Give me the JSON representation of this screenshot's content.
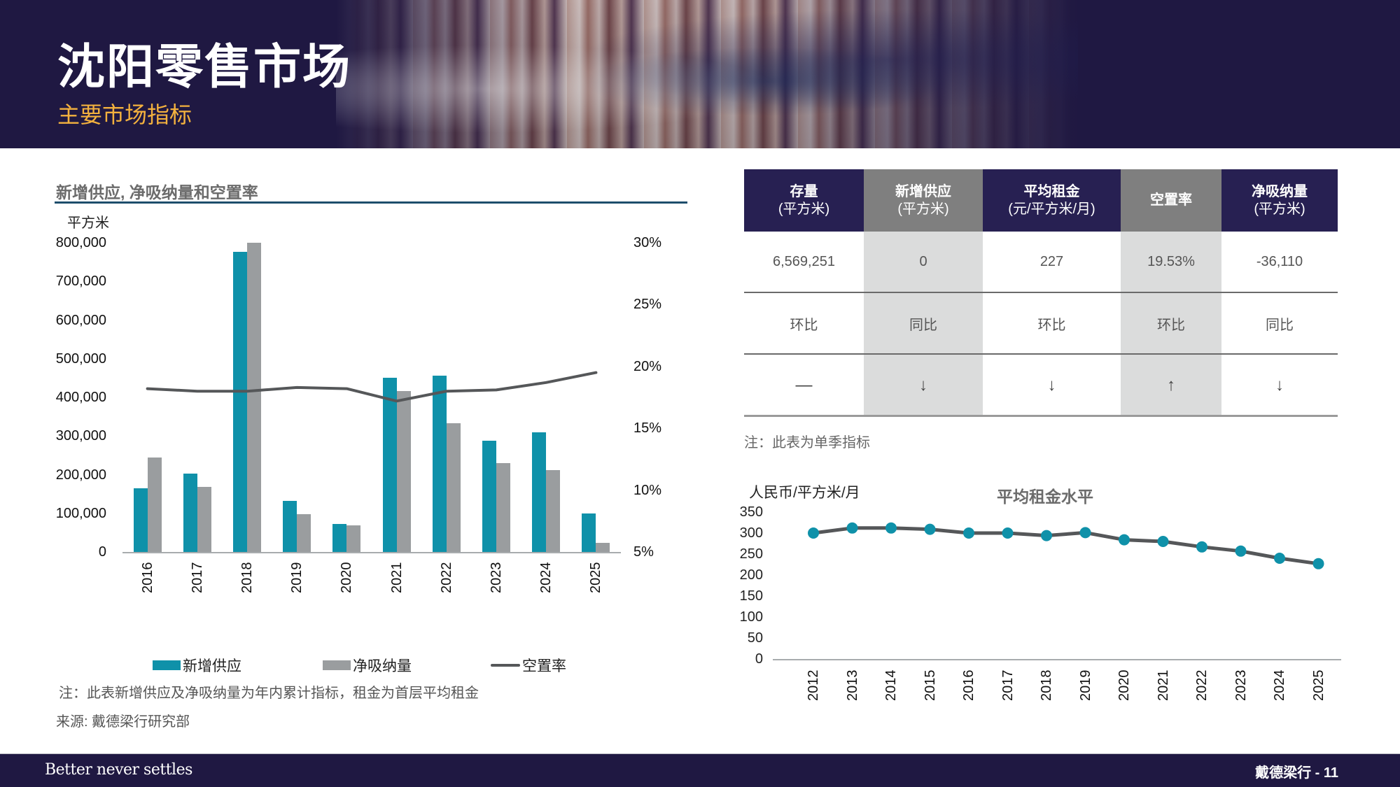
{
  "header": {
    "title": "沈阳零售市场",
    "subtitle": "主要市场指标"
  },
  "left_chart": {
    "title": "新增供应, 净吸纳量和空置率",
    "unit": "平方米",
    "y_ticks": [
      "800,000",
      "700,000",
      "600,000",
      "500,000",
      "400,000",
      "300,000",
      "200,000",
      "100,000",
      "0"
    ],
    "y2_ticks": [
      "30%",
      "25%",
      "20%",
      "15%",
      "10%",
      "5%"
    ],
    "legend": {
      "supply": "新增供应",
      "absorption": "净吸纳量",
      "vacancy": "空置率"
    },
    "note": "注：此表新增供应及净吸纳量为年内累计指标，租金为首层平均租金",
    "source": "来源: 戴德梁行研究部"
  },
  "kpi_table": {
    "columns": [
      {
        "title": "存量",
        "unit": "(平方米)",
        "value": "6,569,251",
        "compare": "环比",
        "trend": "—",
        "style": "dark"
      },
      {
        "title": "新增供应",
        "unit": "(平方米)",
        "value": "0",
        "compare": "同比",
        "trend": "↓",
        "style": "grey"
      },
      {
        "title": "平均租金",
        "unit": "(元/平方米/月)",
        "value": "227",
        "compare": "环比",
        "trend": "↓",
        "style": "dark"
      },
      {
        "title": "空置率",
        "unit": "",
        "value": "19.53%",
        "compare": "环比",
        "trend": "↑",
        "style": "grey"
      },
      {
        "title": "净吸纳量",
        "unit": "(平方米)",
        "value": "-36,110",
        "compare": "同比",
        "trend": "↓",
        "style": "dark"
      }
    ],
    "note": "注：此表为单季指标"
  },
  "right_chart": {
    "title": "平均租金水平",
    "unit": "人民币/平方米/月",
    "y_ticks": [
      "350",
      "300",
      "250",
      "200",
      "150",
      "100",
      "50",
      "0"
    ]
  },
  "footer": {
    "tagline": "Better never settles",
    "page": "戴德梁行 - 11"
  },
  "colors": {
    "navy": "#1f1842",
    "header_dark": "#272052",
    "header_grey": "#7f7f7f",
    "accent_gold": "#f3b13e",
    "supply_teal": "#0f91a9",
    "absorption_grey": "#9a9d9f",
    "vacancy_line": "#555759"
  },
  "chart_data": [
    {
      "type": "bar",
      "title": "新增供应, 净吸纳量和空置率",
      "ylabel": "平方米",
      "y2label": "空置率",
      "categories": [
        "2016",
        "2017",
        "2018",
        "2019",
        "2020",
        "2021",
        "2022",
        "2023",
        "2024",
        "2025"
      ],
      "series": [
        {
          "name": "新增供应",
          "type": "bar",
          "axis": "left",
          "values": [
            165000,
            203000,
            777000,
            132000,
            73000,
            451000,
            456000,
            288000,
            310000,
            100000
          ]
        },
        {
          "name": "净吸纳量",
          "type": "bar",
          "axis": "left",
          "values": [
            245000,
            169000,
            800000,
            97000,
            69000,
            416000,
            333000,
            230000,
            212000,
            24000
          ]
        },
        {
          "name": "空置率",
          "type": "line",
          "axis": "right",
          "values": [
            18.2,
            18.0,
            18.0,
            18.3,
            18.2,
            17.2,
            18.0,
            18.1,
            18.7,
            19.5
          ]
        }
      ],
      "ylim": [
        0,
        800000
      ],
      "y2lim": [
        5,
        30
      ],
      "y2_unit": "%",
      "grid": false,
      "legend_position": "bottom"
    },
    {
      "type": "line",
      "title": "平均租金水平",
      "ylabel": "人民币/平方米/月",
      "x": [
        "2012",
        "2013",
        "2014",
        "2015",
        "2016",
        "2017",
        "2018",
        "2019",
        "2020",
        "2021",
        "2022",
        "2023",
        "2024",
        "2025"
      ],
      "series": [
        {
          "name": "平均租金",
          "values": [
            300,
            312,
            312,
            309,
            300,
            300,
            294,
            301,
            284,
            280,
            267,
            257,
            240,
            227
          ]
        }
      ],
      "ylim": [
        0,
        350
      ],
      "grid": false,
      "markers": true
    }
  ]
}
